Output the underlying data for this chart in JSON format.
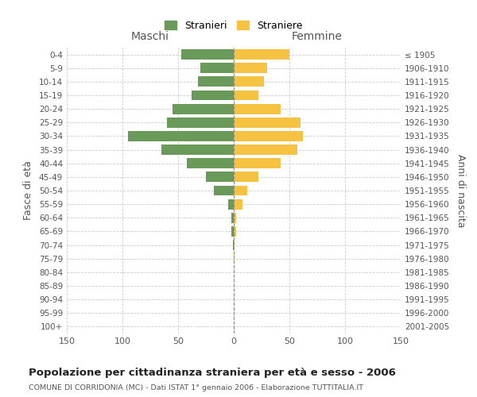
{
  "age_groups": [
    "100+",
    "95-99",
    "90-94",
    "85-89",
    "80-84",
    "75-79",
    "70-74",
    "65-69",
    "60-64",
    "55-59",
    "50-54",
    "45-49",
    "40-44",
    "35-39",
    "30-34",
    "25-29",
    "20-24",
    "15-19",
    "10-14",
    "5-9",
    "0-4"
  ],
  "birth_years": [
    "≤ 1905",
    "1906-1910",
    "1911-1915",
    "1916-1920",
    "1921-1925",
    "1926-1930",
    "1931-1935",
    "1936-1940",
    "1941-1945",
    "1946-1950",
    "1951-1955",
    "1956-1960",
    "1961-1965",
    "1966-1970",
    "1971-1975",
    "1976-1980",
    "1981-1985",
    "1986-1990",
    "1991-1995",
    "1996-2000",
    "2001-2005"
  ],
  "maschi": [
    0,
    0,
    0,
    0,
    0,
    0,
    1,
    2,
    2,
    5,
    18,
    25,
    42,
    65,
    95,
    60,
    55,
    38,
    32,
    30,
    47
  ],
  "femmine": [
    0,
    0,
    0,
    0,
    0,
    1,
    1,
    2,
    2,
    8,
    12,
    22,
    42,
    57,
    62,
    60,
    42,
    22,
    27,
    30,
    50
  ],
  "color_maschi": "#6a9a5a",
  "color_femmine": "#f5c242",
  "title": "Popolazione per cittadinanza straniera per età e sesso - 2006",
  "subtitle": "COMUNE DI CORRIDONIA (MC) - Dati ISTAT 1° gennaio 2006 - Elaborazione TUTTITALIA.IT",
  "xlabel_left": "Maschi",
  "xlabel_right": "Femmine",
  "ylabel_left": "Fasce di età",
  "ylabel_right": "Anni di nascita",
  "legend_maschi": "Stranieri",
  "legend_femmine": "Straniere",
  "xlim": 150,
  "background_color": "#ffffff",
  "grid_color": "#cccccc"
}
